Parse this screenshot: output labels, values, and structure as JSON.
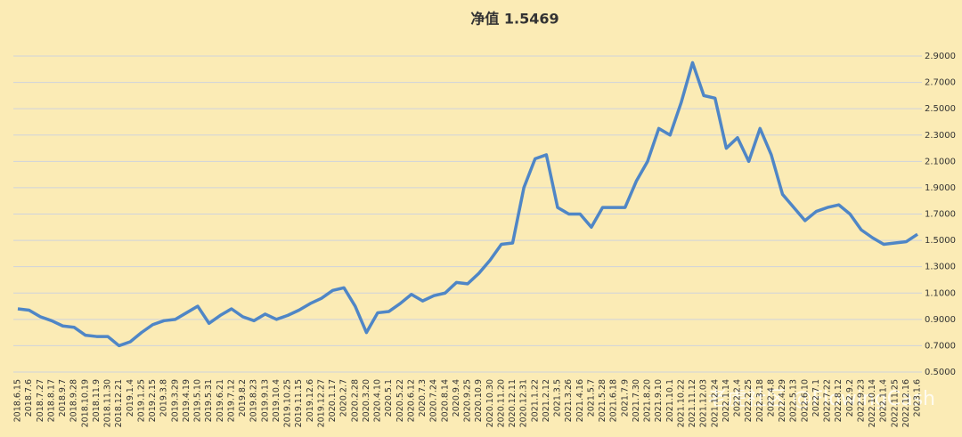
{
  "chart_data": {
    "type": "line",
    "title": "净值 1.5469",
    "categories": [
      "2018.6.15",
      "2018.7.6",
      "2018.7.27",
      "2018.8.17",
      "2018.9.7",
      "2018.9.28",
      "2018.10.19",
      "2018.11.9",
      "2018.11.30",
      "2018.12.21",
      "2019.1.4",
      "2019.1.25",
      "2019.2.15",
      "2019.3.8",
      "2019.3.29",
      "2019.4.19",
      "2019.5.10",
      "2019.5.31",
      "2019.6.21",
      "2019.7.12",
      "2019.8.2",
      "2019.8.23",
      "2019.9.13",
      "2019.10.4",
      "2019.10.25",
      "2019.11.15",
      "2019.12.6",
      "2019.12.27",
      "2020.1.17",
      "2020.2.7",
      "2020.2.28",
      "2020.3.20",
      "2020.4.10",
      "2020.5.1",
      "2020.5.22",
      "2020.6.12",
      "2020.7.3",
      "2020.7.24",
      "2020.8.14",
      "2020.9.4",
      "2020.9.25",
      "2020.10.9",
      "2020.10.30",
      "2020.11.20",
      "2020.12.11",
      "2020.12.31",
      "2021.1.22",
      "2021.2.12",
      "2021.3.5",
      "2021.3.26",
      "2021.4.16",
      "2021.5.7",
      "2021.5.28",
      "2021.6.18",
      "2021.7.9",
      "2021.7.30",
      "2021.8.20",
      "2021.9.10",
      "2021.10.1",
      "2021.10.22",
      "2021.11.12",
      "2021.12.03",
      "2021.12.24",
      "2022.1.14",
      "2022.2.4",
      "2022.2.25",
      "2022.3.18",
      "2022.4.8",
      "2022.4.29",
      "2022.5.13",
      "2022.6.10",
      "2022.7.1",
      "2022.7.22",
      "2022.8.12",
      "2022.9.2",
      "2022.9.23",
      "2022.10.14",
      "2022.11.4",
      "2022.11.25",
      "2022.12.16",
      "2023.1.6"
    ],
    "series": [
      {
        "name": "净值",
        "color": "#4f86c6",
        "values": [
          0.98,
          0.97,
          0.92,
          0.89,
          0.85,
          0.84,
          0.78,
          0.77,
          0.77,
          0.7,
          0.73,
          0.8,
          0.86,
          0.89,
          0.9,
          0.95,
          1.0,
          0.87,
          0.93,
          0.98,
          0.92,
          0.89,
          0.94,
          0.9,
          0.93,
          0.97,
          1.02,
          1.06,
          1.12,
          1.14,
          1.0,
          0.8,
          0.95,
          0.96,
          1.02,
          1.09,
          1.04,
          1.08,
          1.1,
          1.18,
          1.17,
          1.25,
          1.35,
          1.47,
          1.48,
          1.9,
          2.12,
          2.15,
          1.75,
          1.7,
          1.7,
          1.6,
          1.75,
          1.75,
          1.75,
          1.95,
          2.1,
          2.35,
          2.3,
          2.55,
          2.85,
          2.6,
          2.58,
          2.2,
          2.28,
          2.1,
          2.35,
          2.15,
          1.85,
          1.75,
          1.65,
          1.72,
          1.75,
          1.77,
          1.7,
          1.58,
          1.52,
          1.47,
          1.48,
          1.49,
          1.5469
        ]
      }
    ],
    "ylim": [
      0.5,
      2.98
    ],
    "yticks": [
      {
        "value": 0.5,
        "label": "0.5000"
      },
      {
        "value": 0.7,
        "label": "0.7000"
      },
      {
        "value": 0.9,
        "label": "0.9000"
      },
      {
        "value": 1.1,
        "label": "1.1000"
      },
      {
        "value": 1.3,
        "label": "1.3000"
      },
      {
        "value": 1.5,
        "label": "1.5000"
      },
      {
        "value": 1.7,
        "label": "1.7000"
      },
      {
        "value": 1.9,
        "label": "1.9000"
      },
      {
        "value": 2.1,
        "label": "2.1000"
      },
      {
        "value": 2.3,
        "label": "2.3000"
      },
      {
        "value": 2.5,
        "label": "2.5000"
      },
      {
        "value": 2.7,
        "label": "2.7000"
      },
      {
        "value": 2.9,
        "label": "2.9000"
      }
    ],
    "grid": true,
    "watermark": "老虎社区 @FlowingCash"
  }
}
